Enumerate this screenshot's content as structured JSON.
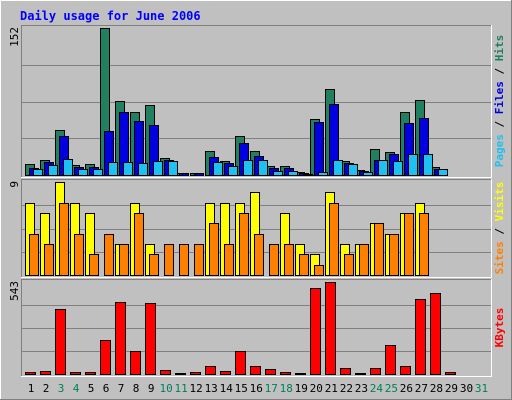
{
  "chart_data": {
    "title": "Daily usage for June 2006",
    "type": "bar",
    "categories": [
      "1",
      "2",
      "3",
      "4",
      "5",
      "6",
      "7",
      "8",
      "9",
      "10",
      "11",
      "12",
      "13",
      "14",
      "15",
      "16",
      "17",
      "18",
      "19",
      "20",
      "21",
      "22",
      "23",
      "24",
      "25",
      "26",
      "27",
      "28",
      "29",
      "30",
      "31"
    ],
    "weekend_days": [
      "3",
      "4",
      "10",
      "11",
      "17",
      "18",
      "24",
      "25",
      "31"
    ],
    "panels": [
      {
        "id": "hits",
        "ymax_label": "152",
        "ymax": 152,
        "series": [
          {
            "name": "Hits",
            "color": "#208060",
            "values": [
              11,
              15,
              47,
              10,
              11,
              152,
              77,
              65,
              72,
              18,
              2,
              2,
              25,
              14,
              40,
              25,
              9,
              9,
              3,
              58,
              89,
              14,
              5,
              27,
              24,
              65,
              78,
              8,
              0,
              0,
              0
            ]
          },
          {
            "name": "Files",
            "color": "#0000e0",
            "values": [
              7,
              13,
              40,
              8,
              8,
              46,
              65,
              56,
              52,
              16,
              2,
              2,
              19,
              12,
              33,
              20,
              7,
              7,
              2,
              55,
              73,
              12,
              4,
              16,
              22,
              54,
              59,
              6,
              0,
              0,
              0
            ]
          },
          {
            "name": "Pages",
            "color": "#20c0f0",
            "values": [
              6,
              10,
              17,
              6,
              6,
              13,
              13,
              12,
              14,
              14,
              0,
              0,
              13,
              9,
              15,
              16,
              4,
              4,
              1,
              3,
              16,
              11,
              3,
              15,
              14,
              22,
              22,
              6,
              0,
              0,
              0
            ]
          }
        ],
        "side_label": [
          {
            "text": "Pages",
            "color": "#20c0f0"
          },
          {
            "text": " / ",
            "color": "#000000"
          },
          {
            "text": "Files",
            "color": "#0000e0"
          },
          {
            "text": " / ",
            "color": "#000000"
          },
          {
            "text": "Hits",
            "color": "#208060"
          }
        ]
      },
      {
        "id": "visits",
        "ymax_label": "9",
        "ymax": 9,
        "series": [
          {
            "name": "Visits",
            "color": "#ffff00",
            "values": [
              7,
              6,
              9,
              7,
              6,
              0,
              3,
              7,
              3,
              0,
              0,
              0,
              7,
              7,
              7,
              8,
              0,
              6,
              3,
              2,
              8,
              3,
              3,
              5,
              4,
              6,
              7,
              0,
              0,
              0,
              0
            ]
          },
          {
            "name": "Sites",
            "color": "#ff8000",
            "values": [
              4,
              3,
              7,
              4,
              2,
              4,
              3,
              6,
              2,
              3,
              3,
              3,
              5,
              3,
              6,
              4,
              3,
              3,
              2,
              1,
              7,
              2,
              3,
              5,
              4,
              6,
              6,
              0,
              0,
              0,
              0
            ]
          }
        ],
        "side_label": [
          {
            "text": "Sites",
            "color": "#ff8000"
          },
          {
            "text": " / ",
            "color": "#000000"
          },
          {
            "text": "Visits",
            "color": "#ffff00"
          }
        ]
      },
      {
        "id": "kbytes",
        "ymax_label": "543",
        "ymax": 543,
        "series": [
          {
            "name": "KBytes",
            "color": "#ff0000",
            "values": [
              14,
              20,
              385,
              10,
              10,
              203,
              426,
              135,
              420,
              24,
              6,
              10,
              45,
              20,
              137,
              47,
              27,
              13,
              5,
              510,
              543,
              35,
              8,
              34,
              169,
              48,
              441,
              480,
              12,
              0,
              0
            ]
          }
        ],
        "side_label": [
          {
            "text": "KBytes",
            "color": "#ff0000"
          }
        ]
      }
    ],
    "colors": {
      "background": "#c0c0c0",
      "grid": "#808080",
      "title": "#0000ff",
      "weekday_label": "#000000",
      "weekend_label": "#00805c"
    }
  }
}
